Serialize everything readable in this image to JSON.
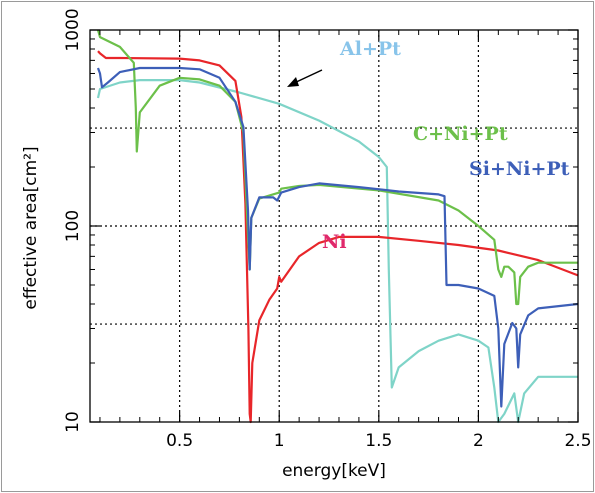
{
  "chart_data": {
    "type": "line",
    "xlabel": "energy[keV]",
    "ylabel": "effective area[cm²]",
    "xlim": [
      0.05,
      2.5
    ],
    "ylim": [
      10,
      1000
    ],
    "yscale": "log",
    "grid": "dotted",
    "x_ticks": [
      {
        "value": 0.5,
        "label": "0.5"
      },
      {
        "value": 1,
        "label": "1"
      },
      {
        "value": 1.5,
        "label": "1.5"
      },
      {
        "value": 2,
        "label": "2"
      },
      {
        "value": 2.5,
        "label": "2.5"
      }
    ],
    "y_ticks": [
      {
        "value": 10,
        "label": "10"
      },
      {
        "value": 100,
        "label": "100"
      },
      {
        "value": 1000,
        "label": "1000"
      }
    ],
    "series": [
      {
        "name": "Ni",
        "color": "#e8262a",
        "points": [
          [
            0.09,
            780
          ],
          [
            0.1,
            760
          ],
          [
            0.13,
            720
          ],
          [
            0.2,
            720
          ],
          [
            0.5,
            715
          ],
          [
            0.6,
            700
          ],
          [
            0.7,
            660
          ],
          [
            0.78,
            550
          ],
          [
            0.81,
            360
          ],
          [
            0.83,
            130
          ],
          [
            0.845,
            30
          ],
          [
            0.852,
            11
          ],
          [
            0.857,
            10
          ],
          [
            0.865,
            20
          ],
          [
            0.9,
            33
          ],
          [
            0.95,
            42
          ],
          [
            0.99,
            48
          ],
          [
            1.0,
            55
          ],
          [
            1.01,
            52
          ],
          [
            1.1,
            70
          ],
          [
            1.2,
            82
          ],
          [
            1.3,
            88
          ],
          [
            1.5,
            88
          ],
          [
            1.7,
            84
          ],
          [
            1.9,
            80
          ],
          [
            2.1,
            75
          ],
          [
            2.3,
            67
          ],
          [
            2.5,
            56
          ]
        ]
      },
      {
        "name": "C+Ni+Pt",
        "color": "#6cc04a",
        "points": [
          [
            0.09,
            1000
          ],
          [
            0.1,
            920
          ],
          [
            0.2,
            820
          ],
          [
            0.27,
            680
          ],
          [
            0.28,
            400
          ],
          [
            0.285,
            240
          ],
          [
            0.3,
            380
          ],
          [
            0.4,
            520
          ],
          [
            0.5,
            570
          ],
          [
            0.6,
            560
          ],
          [
            0.7,
            520
          ],
          [
            0.78,
            430
          ],
          [
            0.82,
            300
          ],
          [
            0.843,
            90
          ],
          [
            0.852,
            60
          ],
          [
            0.86,
            110
          ],
          [
            0.9,
            138
          ],
          [
            1.0,
            148
          ],
          [
            1.01,
            155
          ],
          [
            1.1,
            160
          ],
          [
            1.2,
            162
          ],
          [
            1.5,
            152
          ],
          [
            1.8,
            135
          ],
          [
            1.9,
            120
          ],
          [
            2.0,
            100
          ],
          [
            2.08,
            85
          ],
          [
            2.1,
            60
          ],
          [
            2.115,
            55
          ],
          [
            2.13,
            62
          ],
          [
            2.15,
            62
          ],
          [
            2.18,
            58
          ],
          [
            2.19,
            40
          ],
          [
            2.2,
            40
          ],
          [
            2.21,
            55
          ],
          [
            2.25,
            62
          ],
          [
            2.3,
            65
          ],
          [
            2.5,
            65
          ]
        ]
      },
      {
        "name": "Si+Ni+Pt",
        "color": "#3d5fb8",
        "points": [
          [
            0.09,
            640
          ],
          [
            0.1,
            600
          ],
          [
            0.11,
            510
          ],
          [
            0.14,
            540
          ],
          [
            0.2,
            610
          ],
          [
            0.3,
            640
          ],
          [
            0.5,
            640
          ],
          [
            0.6,
            630
          ],
          [
            0.7,
            570
          ],
          [
            0.78,
            430
          ],
          [
            0.82,
            320
          ],
          [
            0.843,
            120
          ],
          [
            0.852,
            60
          ],
          [
            0.86,
            110
          ],
          [
            0.9,
            140
          ],
          [
            0.97,
            140
          ],
          [
            0.99,
            135
          ],
          [
            1.01,
            148
          ],
          [
            1.1,
            158
          ],
          [
            1.2,
            165
          ],
          [
            1.4,
            158
          ],
          [
            1.6,
            150
          ],
          [
            1.8,
            145
          ],
          [
            1.83,
            142
          ],
          [
            1.84,
            50
          ],
          [
            1.9,
            50
          ],
          [
            2.0,
            48
          ],
          [
            2.08,
            44
          ],
          [
            2.1,
            30
          ],
          [
            2.115,
            12
          ],
          [
            2.13,
            25
          ],
          [
            2.17,
            32
          ],
          [
            2.19,
            30
          ],
          [
            2.2,
            19
          ],
          [
            2.21,
            28
          ],
          [
            2.25,
            35
          ],
          [
            2.3,
            38
          ],
          [
            2.5,
            40
          ]
        ]
      },
      {
        "name": "Al+Pt",
        "color": "#7fd4c8",
        "points": [
          [
            0.09,
            450
          ],
          [
            0.1,
            500
          ],
          [
            0.2,
            540
          ],
          [
            0.3,
            555
          ],
          [
            0.5,
            555
          ],
          [
            0.6,
            540
          ],
          [
            0.8,
            480
          ],
          [
            1.0,
            420
          ],
          [
            1.2,
            345
          ],
          [
            1.4,
            270
          ],
          [
            1.5,
            225
          ],
          [
            1.54,
            200
          ],
          [
            1.55,
            60
          ],
          [
            1.565,
            15
          ],
          [
            1.6,
            19
          ],
          [
            1.7,
            23
          ],
          [
            1.8,
            26
          ],
          [
            1.9,
            28
          ],
          [
            2.0,
            26
          ],
          [
            2.05,
            24
          ],
          [
            2.08,
            15
          ],
          [
            2.1,
            10
          ],
          [
            2.13,
            11
          ],
          [
            2.18,
            14
          ],
          [
            2.2,
            10
          ],
          [
            2.23,
            14
          ],
          [
            2.3,
            17
          ],
          [
            2.5,
            17
          ]
        ]
      }
    ],
    "annotations": [
      {
        "text": "Al+Pt",
        "color": "#88c4ea"
      },
      {
        "text": "C+Ni+Pt",
        "color": "#6cc04a"
      },
      {
        "text": "Si+Ni+Pt",
        "color": "#3d5fb8"
      },
      {
        "text": "Ni",
        "color": "#e0286b"
      }
    ]
  }
}
